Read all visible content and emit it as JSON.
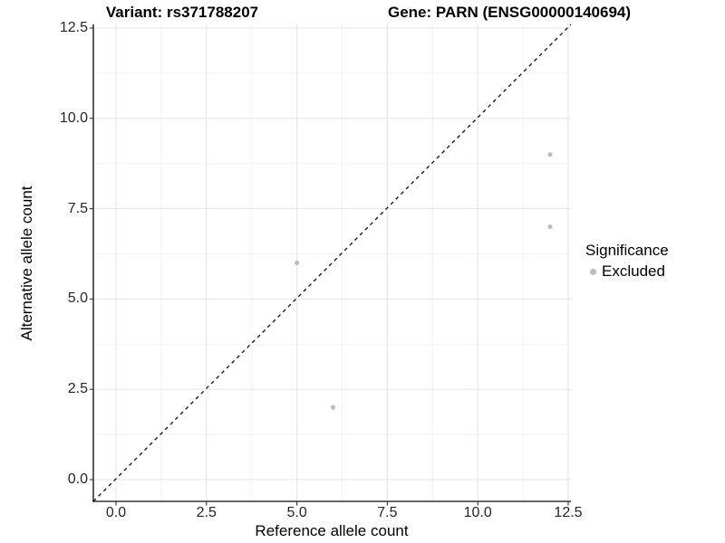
{
  "titles": {
    "left": "Variant: rs371788207",
    "right": "Gene: PARN (ENSG00000140694)"
  },
  "axes": {
    "x_label": "Reference allele count",
    "y_label": "Alternative allele count"
  },
  "legend": {
    "title": "Significance",
    "items": [
      {
        "label": "Excluded",
        "color": "#bdbdbd"
      }
    ]
  },
  "chart_data": {
    "type": "scatter",
    "title": "Variant: rs371788207   Gene: PARN (ENSG00000140694)",
    "xlabel": "Reference allele count",
    "ylabel": "Alternative allele count",
    "xlim": [
      0,
      12.5
    ],
    "ylim": [
      0,
      12.5
    ],
    "x_ticks": [
      0,
      2.5,
      5,
      7.5,
      10,
      12.5
    ],
    "y_ticks": [
      0,
      2.5,
      5,
      7.5,
      10,
      12.5
    ],
    "x_tick_labels": [
      "0.0",
      "2.5",
      "5.0",
      "7.5",
      "10.0",
      "12.5"
    ],
    "y_tick_labels": [
      "0.0",
      "2.5",
      "5.0",
      "7.5",
      "10.0",
      "12.5"
    ],
    "grid": "major+minor",
    "legend_position": "right",
    "reference_line": {
      "kind": "identity y=x",
      "style": "dashed",
      "color": "#000000"
    },
    "series": [
      {
        "name": "Excluded",
        "color": "#bdbdbd",
        "points": [
          {
            "x": 5,
            "y": 6
          },
          {
            "x": 6,
            "y": 2
          },
          {
            "x": 12,
            "y": 9
          },
          {
            "x": 12,
            "y": 7
          }
        ]
      }
    ]
  },
  "colors": {
    "background": "#ffffff",
    "grid_major": "#e5e5e5",
    "grid_minor": "#f2f2f2",
    "axis_line": "#333333",
    "tick_mark": "#333333",
    "point": "#bdbdbd",
    "reference_line": "#000000"
  }
}
